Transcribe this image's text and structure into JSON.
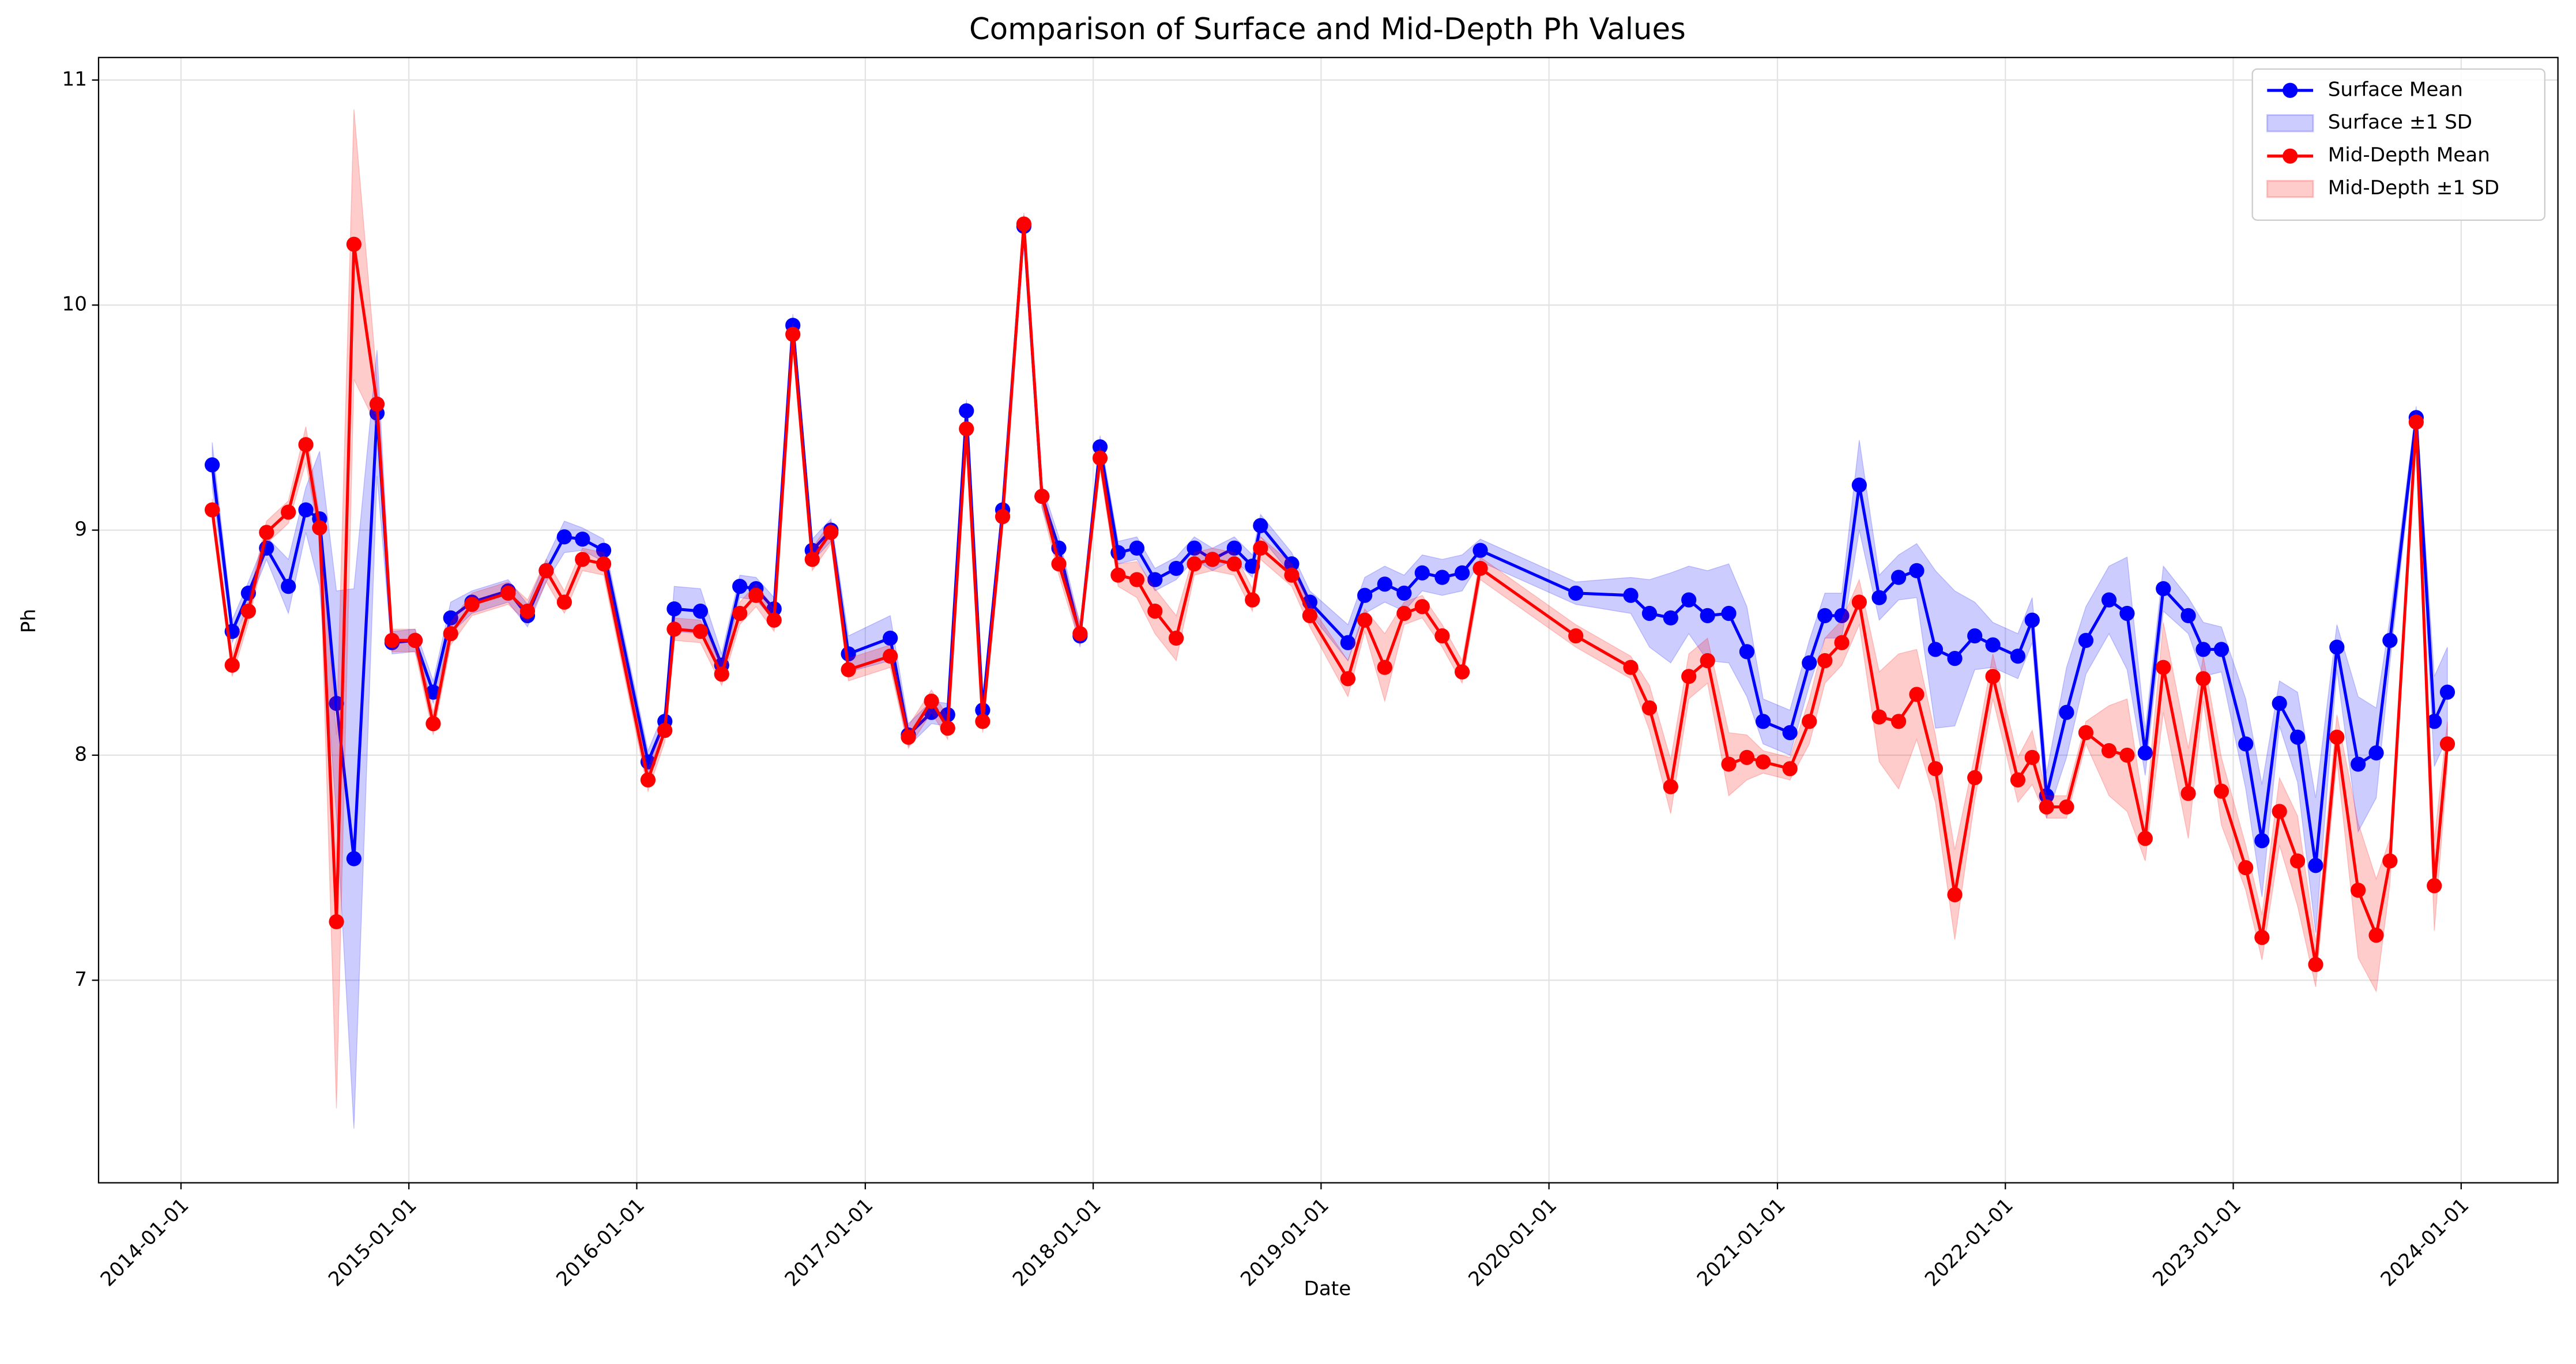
{
  "chart_data": {
    "type": "line",
    "title": "Comparison of Surface and Mid-Depth Ph Values",
    "x_label": "Date",
    "y_label": "Ph",
    "x": [
      "2014-02-20",
      "2014-03-24",
      "2014-04-19",
      "2014-05-18",
      "2014-06-22",
      "2014-07-20",
      "2014-08-11",
      "2014-09-07",
      "2014-10-05",
      "2014-11-11",
      "2014-12-05",
      "2015-01-11",
      "2015-02-09",
      "2015-03-09",
      "2015-04-12",
      "2015-06-09",
      "2015-07-10",
      "2015-08-09",
      "2015-09-07",
      "2015-10-06",
      "2015-11-09",
      "2016-01-19",
      "2016-02-15",
      "2016-03-01",
      "2016-04-12",
      "2016-05-16",
      "2016-06-14",
      "2016-07-10",
      "2016-08-08",
      "2016-09-07",
      "2016-10-08",
      "2016-11-07",
      "2016-12-05",
      "2017-02-10",
      "2017-03-11",
      "2017-04-17",
      "2017-05-13",
      "2017-06-12",
      "2017-07-08",
      "2017-08-09",
      "2017-09-12",
      "2017-10-11",
      "2017-11-07",
      "2017-12-11",
      "2018-01-12",
      "2018-02-10",
      "2018-03-12",
      "2018-04-10",
      "2018-05-14",
      "2018-06-12",
      "2018-07-11",
      "2018-08-15",
      "2018-09-13",
      "2018-09-26",
      "2018-11-15",
      "2018-12-14",
      "2019-02-13",
      "2019-03-12",
      "2019-04-13",
      "2019-05-14",
      "2019-06-12",
      "2019-07-14",
      "2019-08-15",
      "2019-09-13",
      "2020-02-13",
      "2020-05-11",
      "2020-06-10",
      "2020-07-14",
      "2020-08-12",
      "2020-09-11",
      "2020-10-15",
      "2020-11-13",
      "2020-12-09",
      "2021-01-21",
      "2021-02-21",
      "2021-03-18",
      "2021-04-14",
      "2021-05-12",
      "2021-06-13",
      "2021-07-14",
      "2021-08-12",
      "2021-09-11",
      "2021-10-12",
      "2021-11-13",
      "2021-12-12",
      "2022-01-21",
      "2022-02-13",
      "2022-03-08",
      "2022-04-09",
      "2022-05-10",
      "2022-06-16",
      "2022-07-15",
      "2022-08-13",
      "2022-09-11",
      "2022-10-21",
      "2022-11-14",
      "2022-12-13",
      "2023-01-21",
      "2023-02-16",
      "2023-03-16",
      "2023-04-14",
      "2023-05-13",
      "2023-06-16",
      "2023-07-20",
      "2023-08-18",
      "2023-09-09",
      "2023-10-21",
      "2023-11-19",
      "2023-12-10"
    ],
    "series": [
      {
        "name": "Surface Mean",
        "color": "#0000ff",
        "band_name": "Surface ±1 SD",
        "band_color": "rgba(0,0,255,0.2)",
        "values": [
          9.29,
          8.55,
          8.72,
          8.92,
          8.75,
          9.09,
          9.05,
          8.23,
          7.54,
          9.52,
          8.5,
          8.51,
          8.28,
          8.61,
          8.68,
          8.73,
          8.62,
          8.82,
          8.97,
          8.96,
          8.91,
          7.97,
          8.15,
          8.65,
          8.64,
          8.4,
          8.75,
          8.74,
          8.65,
          9.91,
          8.91,
          9.0,
          8.45,
          8.52,
          8.09,
          8.19,
          8.18,
          9.53,
          8.2,
          9.09,
          10.35,
          9.15,
          8.92,
          8.53,
          9.37,
          8.9,
          8.92,
          8.78,
          8.83,
          8.92,
          8.87,
          8.92,
          8.84,
          9.02,
          8.85,
          8.68,
          8.5,
          8.71,
          8.76,
          8.72,
          8.81,
          8.79,
          8.81,
          8.91,
          8.72,
          8.71,
          8.63,
          8.61,
          8.69,
          8.62,
          8.63,
          8.46,
          8.15,
          8.1,
          8.41,
          8.62,
          8.62,
          9.2,
          8.7,
          8.79,
          8.82,
          8.47,
          8.43,
          8.53,
          8.49,
          8.44,
          8.6,
          7.82,
          8.19,
          8.51,
          8.69,
          8.63,
          8.01,
          8.74,
          8.62,
          8.47,
          8.47,
          8.05,
          7.62,
          8.23,
          8.08,
          7.51,
          8.48,
          7.96,
          8.01,
          8.51,
          9.5,
          8.15,
          8.28
        ],
        "sd": [
          0.1,
          0.05,
          0.05,
          0.05,
          0.12,
          0.1,
          0.3,
          0.5,
          1.2,
          0.28,
          0.05,
          0.05,
          0.05,
          0.07,
          0.05,
          0.05,
          0.05,
          0.05,
          0.07,
          0.05,
          0.05,
          0.05,
          0.05,
          0.1,
          0.1,
          0.05,
          0.05,
          0.05,
          0.05,
          0.05,
          0.05,
          0.05,
          0.08,
          0.1,
          0.05,
          0.05,
          0.05,
          0.05,
          0.05,
          0.05,
          0.05,
          0.05,
          0.05,
          0.05,
          0.05,
          0.05,
          0.05,
          0.05,
          0.05,
          0.05,
          0.05,
          0.05,
          0.05,
          0.05,
          0.05,
          0.05,
          0.08,
          0.08,
          0.08,
          0.08,
          0.08,
          0.08,
          0.08,
          0.05,
          0.05,
          0.08,
          0.15,
          0.2,
          0.15,
          0.2,
          0.22,
          0.2,
          0.1,
          0.1,
          0.1,
          0.1,
          0.1,
          0.2,
          0.1,
          0.1,
          0.12,
          0.35,
          0.3,
          0.15,
          0.1,
          0.1,
          0.1,
          0.1,
          0.2,
          0.15,
          0.15,
          0.25,
          0.1,
          0.1,
          0.08,
          0.12,
          0.1,
          0.2,
          0.25,
          0.1,
          0.2,
          0.3,
          0.1,
          0.3,
          0.2,
          0.1,
          0.05,
          0.2,
          0.2
        ]
      },
      {
        "name": "Mid-Depth Mean",
        "color": "#ff0000",
        "band_name": "Mid-Depth ±1 SD",
        "band_color": "rgba(255,0,0,0.2)",
        "values": [
          9.09,
          8.4,
          8.64,
          8.99,
          9.08,
          9.38,
          9.01,
          7.26,
          10.27,
          9.56,
          8.51,
          8.51,
          8.14,
          8.54,
          8.67,
          8.72,
          8.64,
          8.82,
          8.68,
          8.87,
          8.85,
          7.89,
          8.11,
          8.56,
          8.55,
          8.36,
          8.63,
          8.71,
          8.6,
          9.87,
          8.87,
          8.99,
          8.38,
          8.44,
          8.08,
          8.24,
          8.12,
          9.45,
          8.15,
          9.06,
          10.36,
          9.15,
          8.85,
          8.54,
          9.32,
          8.8,
          8.78,
          8.64,
          8.52,
          8.85,
          8.87,
          8.85,
          8.69,
          8.92,
          8.8,
          8.62,
          8.34,
          8.6,
          8.39,
          8.63,
          8.66,
          8.53,
          8.37,
          8.83,
          8.53,
          8.39,
          8.21,
          7.86,
          8.35,
          8.42,
          7.96,
          7.99,
          7.97,
          7.94,
          8.15,
          8.42,
          8.5,
          8.68,
          8.17,
          8.15,
          8.27,
          7.94,
          7.38,
          7.9,
          8.35,
          7.89,
          7.99,
          7.77,
          7.77,
          8.1,
          8.02,
          8.0,
          7.63,
          8.39,
          7.83,
          8.34,
          7.84,
          7.5,
          7.19,
          7.75,
          7.53,
          7.07,
          8.08,
          7.4,
          7.2,
          7.53,
          9.48,
          7.42,
          8.05
        ],
        "sd": [
          0.05,
          0.05,
          0.05,
          0.05,
          0.05,
          0.08,
          0.05,
          0.83,
          0.6,
          0.1,
          0.05,
          0.05,
          0.05,
          0.05,
          0.05,
          0.05,
          0.05,
          0.05,
          0.05,
          0.05,
          0.05,
          0.05,
          0.05,
          0.05,
          0.05,
          0.05,
          0.05,
          0.05,
          0.05,
          0.05,
          0.05,
          0.05,
          0.05,
          0.05,
          0.05,
          0.05,
          0.05,
          0.05,
          0.05,
          0.05,
          0.05,
          0.05,
          0.05,
          0.05,
          0.05,
          0.05,
          0.08,
          0.1,
          0.1,
          0.05,
          0.05,
          0.05,
          0.05,
          0.05,
          0.05,
          0.05,
          0.08,
          0.05,
          0.15,
          0.05,
          0.05,
          0.05,
          0.05,
          0.05,
          0.05,
          0.05,
          0.1,
          0.12,
          0.1,
          0.1,
          0.14,
          0.1,
          0.05,
          0.05,
          0.1,
          0.1,
          0.1,
          0.1,
          0.2,
          0.3,
          0.2,
          0.15,
          0.2,
          0.1,
          0.1,
          0.1,
          0.12,
          0.05,
          0.05,
          0.05,
          0.2,
          0.25,
          0.1,
          0.2,
          0.2,
          0.1,
          0.15,
          0.1,
          0.1,
          0.15,
          0.2,
          0.1,
          0.1,
          0.3,
          0.25,
          0.1,
          0.05,
          0.2,
          0.1
        ]
      }
    ],
    "xlim": [
      "2013-08-22",
      "2024-06-04"
    ],
    "xticks": [
      "2014-01-01",
      "2015-01-01",
      "2016-01-01",
      "2017-01-01",
      "2018-01-01",
      "2019-01-01",
      "2020-01-01",
      "2021-01-01",
      "2022-01-01",
      "2023-01-01",
      "2024-01-01"
    ],
    "ylim": [
      6.1,
      11.1
    ],
    "yticks": [
      7,
      8,
      9,
      10,
      11
    ],
    "grid": true,
    "legend": "upper right"
  }
}
